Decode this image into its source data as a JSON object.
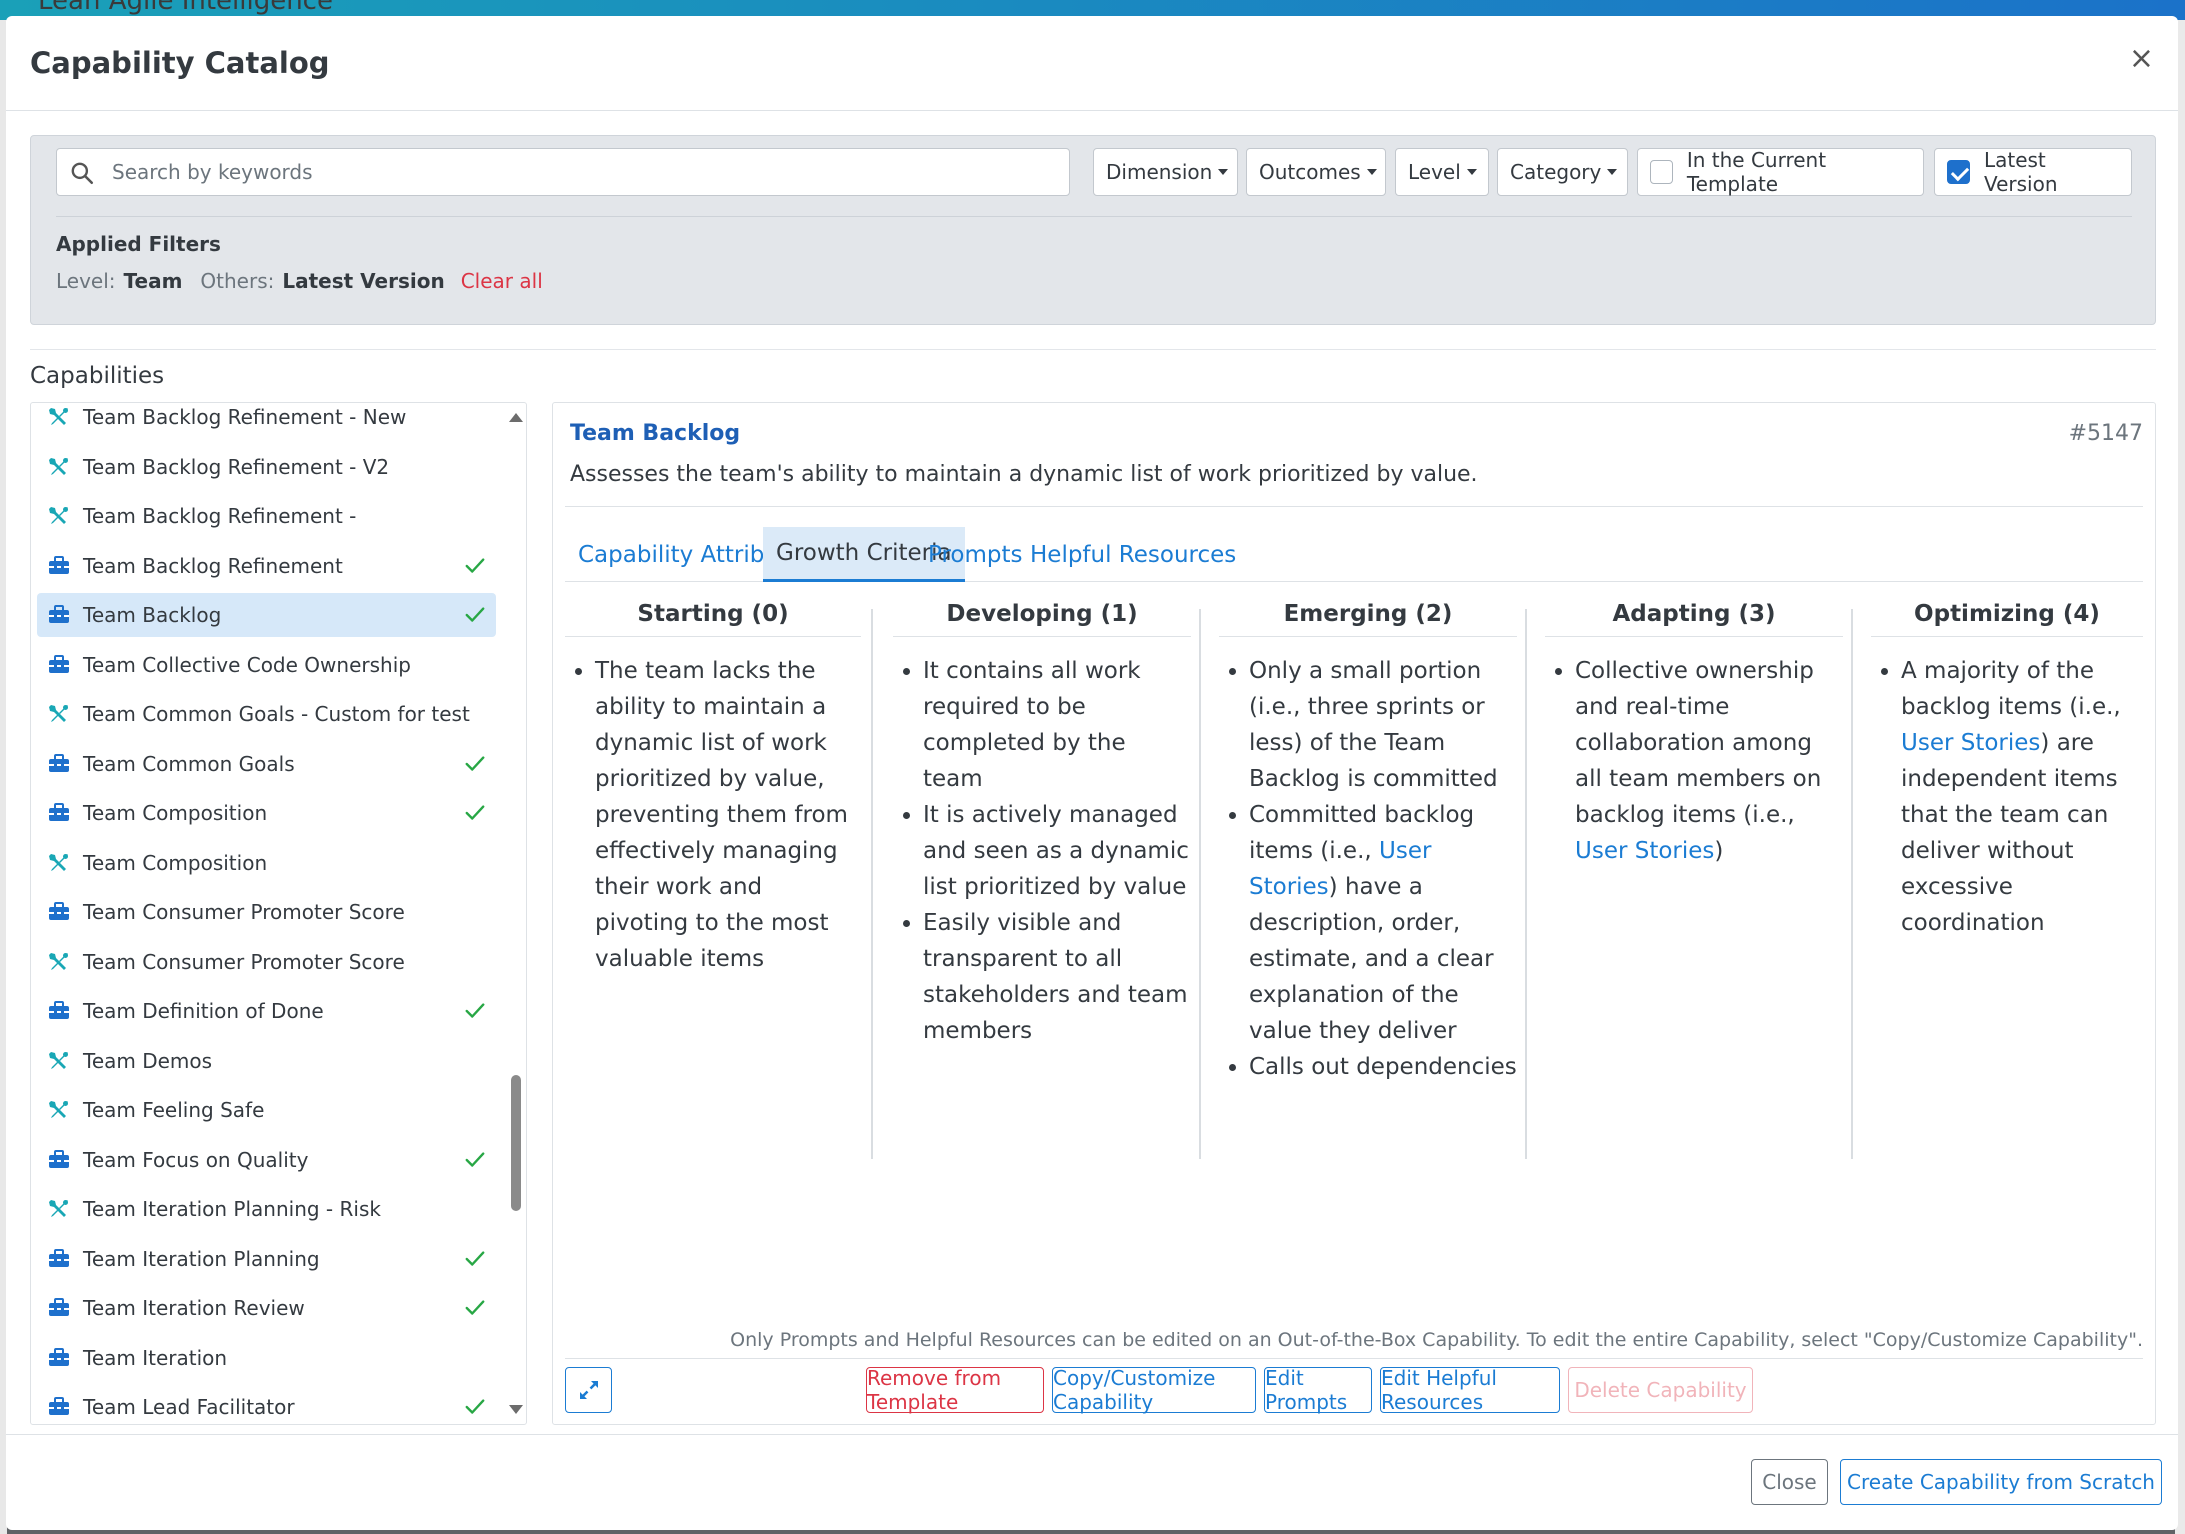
{
  "backdrop": {
    "title": "Lean Agile Intelligence"
  },
  "modal": {
    "title": "Capability Catalog",
    "close_symbol": "×"
  },
  "filters": {
    "search_placeholder": "Search by keywords",
    "search_value": "",
    "dropdowns": [
      "Dimension",
      "Outcomes",
      "Level",
      "Category"
    ],
    "checkboxes": [
      {
        "label": "In the Current Template",
        "checked": false
      },
      {
        "label": "Latest Version",
        "checked": true
      }
    ],
    "applied_title": "Applied Filters",
    "applied_level_label": "Level:",
    "applied_level_value": "Team",
    "applied_others_label": "Others:",
    "applied_others_value": "Latest Version",
    "clear_all": "Clear all"
  },
  "capabilities": {
    "heading": "Capabilities",
    "items": [
      {
        "label": "Team Backlog Refinement - New",
        "icon": "wrench-screwdriver-icon",
        "checked": false,
        "selected": false
      },
      {
        "label": "Team Backlog Refinement - V2",
        "icon": "wrench-screwdriver-icon",
        "checked": false,
        "selected": false
      },
      {
        "label": "Team Backlog Refinement -",
        "icon": "wrench-screwdriver-icon",
        "checked": false,
        "selected": false
      },
      {
        "label": "Team Backlog Refinement",
        "icon": "toolbox-icon",
        "checked": true,
        "selected": false
      },
      {
        "label": "Team Backlog",
        "icon": "toolbox-icon",
        "checked": true,
        "selected": true
      },
      {
        "label": "Team Collective Code Ownership",
        "icon": "toolbox-icon",
        "checked": false,
        "selected": false
      },
      {
        "label": "Team Common Goals - Custom for test",
        "icon": "wrench-screwdriver-icon",
        "checked": false,
        "selected": false
      },
      {
        "label": "Team Common Goals",
        "icon": "toolbox-icon",
        "checked": true,
        "selected": false
      },
      {
        "label": "Team Composition",
        "icon": "toolbox-icon",
        "checked": true,
        "selected": false
      },
      {
        "label": "Team Composition",
        "icon": "wrench-screwdriver-icon",
        "checked": false,
        "selected": false
      },
      {
        "label": "Team Consumer Promoter Score",
        "icon": "toolbox-icon",
        "checked": false,
        "selected": false
      },
      {
        "label": "Team Consumer Promoter Score",
        "icon": "wrench-screwdriver-icon",
        "checked": false,
        "selected": false
      },
      {
        "label": "Team Definition of Done",
        "icon": "toolbox-icon",
        "checked": true,
        "selected": false
      },
      {
        "label": "Team Demos",
        "icon": "wrench-screwdriver-icon",
        "checked": false,
        "selected": false
      },
      {
        "label": "Team Feeling Safe",
        "icon": "wrench-screwdriver-icon",
        "checked": false,
        "selected": false
      },
      {
        "label": "Team Focus on Quality",
        "icon": "toolbox-icon",
        "checked": true,
        "selected": false
      },
      {
        "label": "Team Iteration Planning - Risk",
        "icon": "wrench-screwdriver-icon",
        "checked": false,
        "selected": false
      },
      {
        "label": "Team Iteration Planning",
        "icon": "toolbox-icon",
        "checked": true,
        "selected": false
      },
      {
        "label": "Team Iteration Review",
        "icon": "toolbox-icon",
        "checked": true,
        "selected": false
      },
      {
        "label": "Team Iteration",
        "icon": "toolbox-icon",
        "checked": false,
        "selected": false
      },
      {
        "label": "Team Lead Facilitator",
        "icon": "toolbox-icon",
        "checked": true,
        "selected": false
      }
    ]
  },
  "detail": {
    "title": "Team Backlog",
    "id": "#5147",
    "description": "Assesses the team's ability to maintain a dynamic list of work prioritized by value.",
    "tabs": [
      "Capability Attributes",
      "Growth Criteria",
      "Prompts",
      "Helpful Resources"
    ],
    "active_tab": "Growth Criteria",
    "growth_criteria": [
      {
        "heading": "Starting (0)",
        "bullets": [
          "The team lacks the ability to maintain a dynamic list of work prioritized by value, preventing them from effectively managing their work and pivoting to the most valuable items"
        ]
      },
      {
        "heading": "Developing (1)",
        "bullets": [
          "It contains all work required to be completed by the team",
          "It is actively managed and seen as a dynamic list prioritized by value",
          "Easily visible and transparent to all stakeholders and team members"
        ]
      },
      {
        "heading": "Emerging (2)",
        "bullets": [
          "Only a small portion (i.e., three sprints or less) of the Team Backlog is committed",
          "Committed backlog items (i.e., ",
          "User Stories",
          ") have a description, order, estimate, and a clear explanation of the value they deliver",
          "Calls out dependencies"
        ]
      },
      {
        "heading": "Adapting (3)",
        "bullets": [
          "Collective ownership and real-time collaboration among all team members on backlog items (i.e., ",
          "User Stories",
          ")"
        ]
      },
      {
        "heading": "Optimizing (4)",
        "bullets": [
          "A majority of the backlog items (i.e., ",
          "User Stories",
          ") are independent items that the team can deliver without excessive coordination"
        ]
      }
    ],
    "note": "Only Prompts and Helpful Resources can be edited on an Out-of-the-Box Capability. To edit the entire Capability, select \"Copy/Customize Capability\".",
    "buttons": {
      "remove": "Remove from Template",
      "copy": "Copy/Customize Capability",
      "edit_prompts": "Edit Prompts",
      "edit_resources": "Edit Helpful Resources",
      "delete": "Delete Capability"
    }
  },
  "footer": {
    "close": "Close",
    "create": "Create Capability from Scratch"
  },
  "colors": {
    "accent": "#1b7cd3",
    "danger": "#dc3545",
    "success": "#28a745",
    "icon_teal": "#19a7b5",
    "icon_blue": "#1e70cc"
  }
}
